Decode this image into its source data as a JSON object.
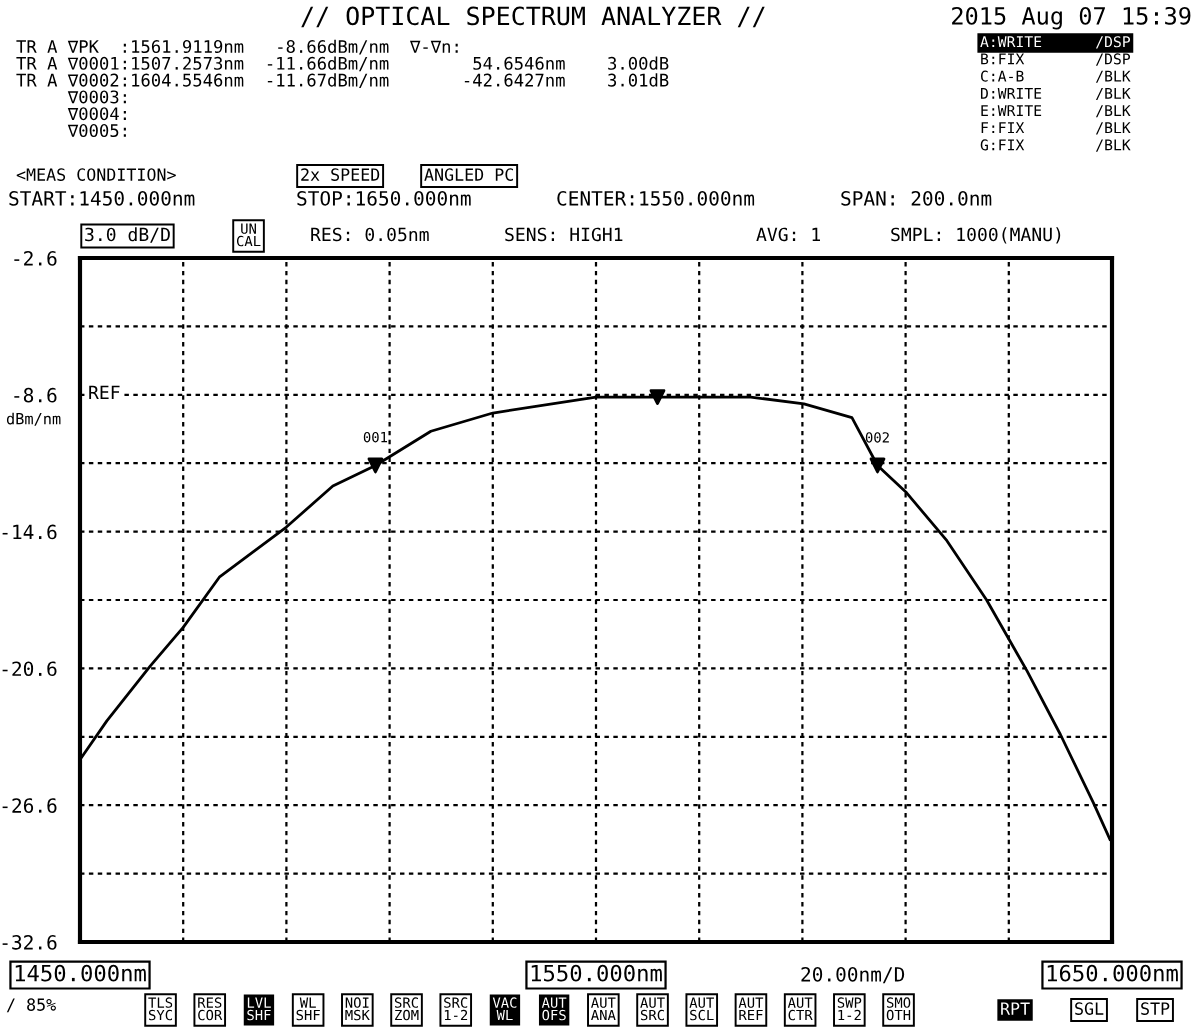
{
  "chart_data": {
    "type": "line",
    "title": "// OPTICAL SPECTRUM ANALYZER //",
    "subtitle": "2015 Aug 07 15:39",
    "ylabel": "dBm/nm",
    "x": [
      1450,
      1455.2,
      1463.6,
      1470,
      1477,
      1490,
      1499,
      1507.2573,
      1518,
      1530,
      1550,
      1561.9119,
      1580,
      1590.3,
      1599.6,
      1604.5546,
      1610.2,
      1618,
      1625.7,
      1633.5,
      1640,
      1646.4,
      1649.6
    ],
    "series": [
      {
        "color": "#000000",
        "values": [
          -24.6,
          -22.9,
          -20.5,
          -18.8,
          -16.6,
          -14.4,
          -12.6,
          -11.7,
          -10.2,
          -9.4,
          -8.7,
          -8.7,
          -8.7,
          -9.0,
          -9.6,
          -11.7,
          -12.9,
          -15.0,
          -17.6,
          -20.7,
          -23.5,
          -26.5,
          -28.1
        ]
      },
      {
        "type": "scatter",
        "marker": "triangle",
        "color": "#000000",
        "x": [
          1561.9119,
          1507.2573,
          1604.5546
        ],
        "values": [
          -8.7,
          -11.7,
          -11.7
        ]
      }
    ],
    "xlim": [
      1450,
      1650
    ],
    "xticks": [
      {
        "value": 1450,
        "label": "1450.000nm"
      },
      {
        "value": 1470,
        "label": null
      },
      {
        "value": 1490,
        "label": null
      },
      {
        "value": 1510,
        "label": null
      },
      {
        "value": 1530,
        "label": null
      },
      {
        "value": 1550,
        "label": "1550.000nm"
      },
      {
        "value": 1570,
        "label": null
      },
      {
        "value": 1590,
        "label": null
      },
      {
        "value": 1610,
        "label": null
      },
      {
        "value": 1630,
        "label": null
      },
      {
        "value": 1650,
        "label": "1650.000nm"
      }
    ],
    "ylim": [
      -32.6,
      -2.6
    ],
    "yticks": [
      -2.6,
      {
        "value": -5.6,
        "label": null
      },
      -8.6,
      {
        "value": -11.6,
        "label": null
      },
      -14.6,
      {
        "value": -17.6,
        "label": null
      },
      -20.6,
      {
        "value": -23.6,
        "label": null
      },
      -26.6,
      {
        "value": -29.6,
        "label": null
      },
      -32.6
    ],
    "grid": true,
    "annotations": [
      "TR A ∇PK  :1561.9119nm   -8.66dBm/nm  ∇-∇n:",
      "TR A ∇0001:1507.2573nm  -11.66dBm/nm        54.6546nm    3.00dB",
      "TR A ∇0002:1604.5546nm  -11.67dBm/nm       -42.6427nm    3.01dB",
      "     ∇0003:",
      "     ∇0004:",
      "     ∇0005:",
      "A:WRITE      /DSP",
      "B:FIX        /DSP",
      "C:A-B        /BLK",
      "D:WRITE      /BLK",
      "E:WRITE      /BLK",
      "F:FIX        /BLK",
      "G:FIX        /BLK",
      "<MEAS CONDITION>",
      "2x SPEED",
      "ANGLED PC",
      "START:1450.000nm",
      "STOP:1650.000nm",
      "CENTER:1550.000nm",
      "SPAN: 200.0nm",
      "3.0 dB/D",
      "UN\nCAL",
      "RES: 0.05nm",
      "SENS: HIGH1",
      "AVG: 1",
      "SMPL: 1000(MANU)",
      "20.00nm/D",
      "/ 85%",
      "TLS\nSYC",
      "RES\nCOR",
      "LVL\nSHF",
      "WL\nSHF",
      "NOI\nMSK",
      "SRC\nZOM",
      "SRC\n1-2",
      "VAC\nWL",
      "AUT\nOFS",
      "AUT\nANA",
      "AUT\nSRC",
      "AUT\nSCL",
      "AUT\nREF",
      "AUT\nCTR",
      "SWP\n1-2",
      "SMO\nOTH",
      "RPT",
      "SGL",
      "STP",
      "REF",
      {
        "text": "001",
        "x": 1507.2573,
        "y": -11.66
      },
      {
        "text": "002",
        "x": 1604.5546,
        "y": -11.67
      }
    ]
  }
}
